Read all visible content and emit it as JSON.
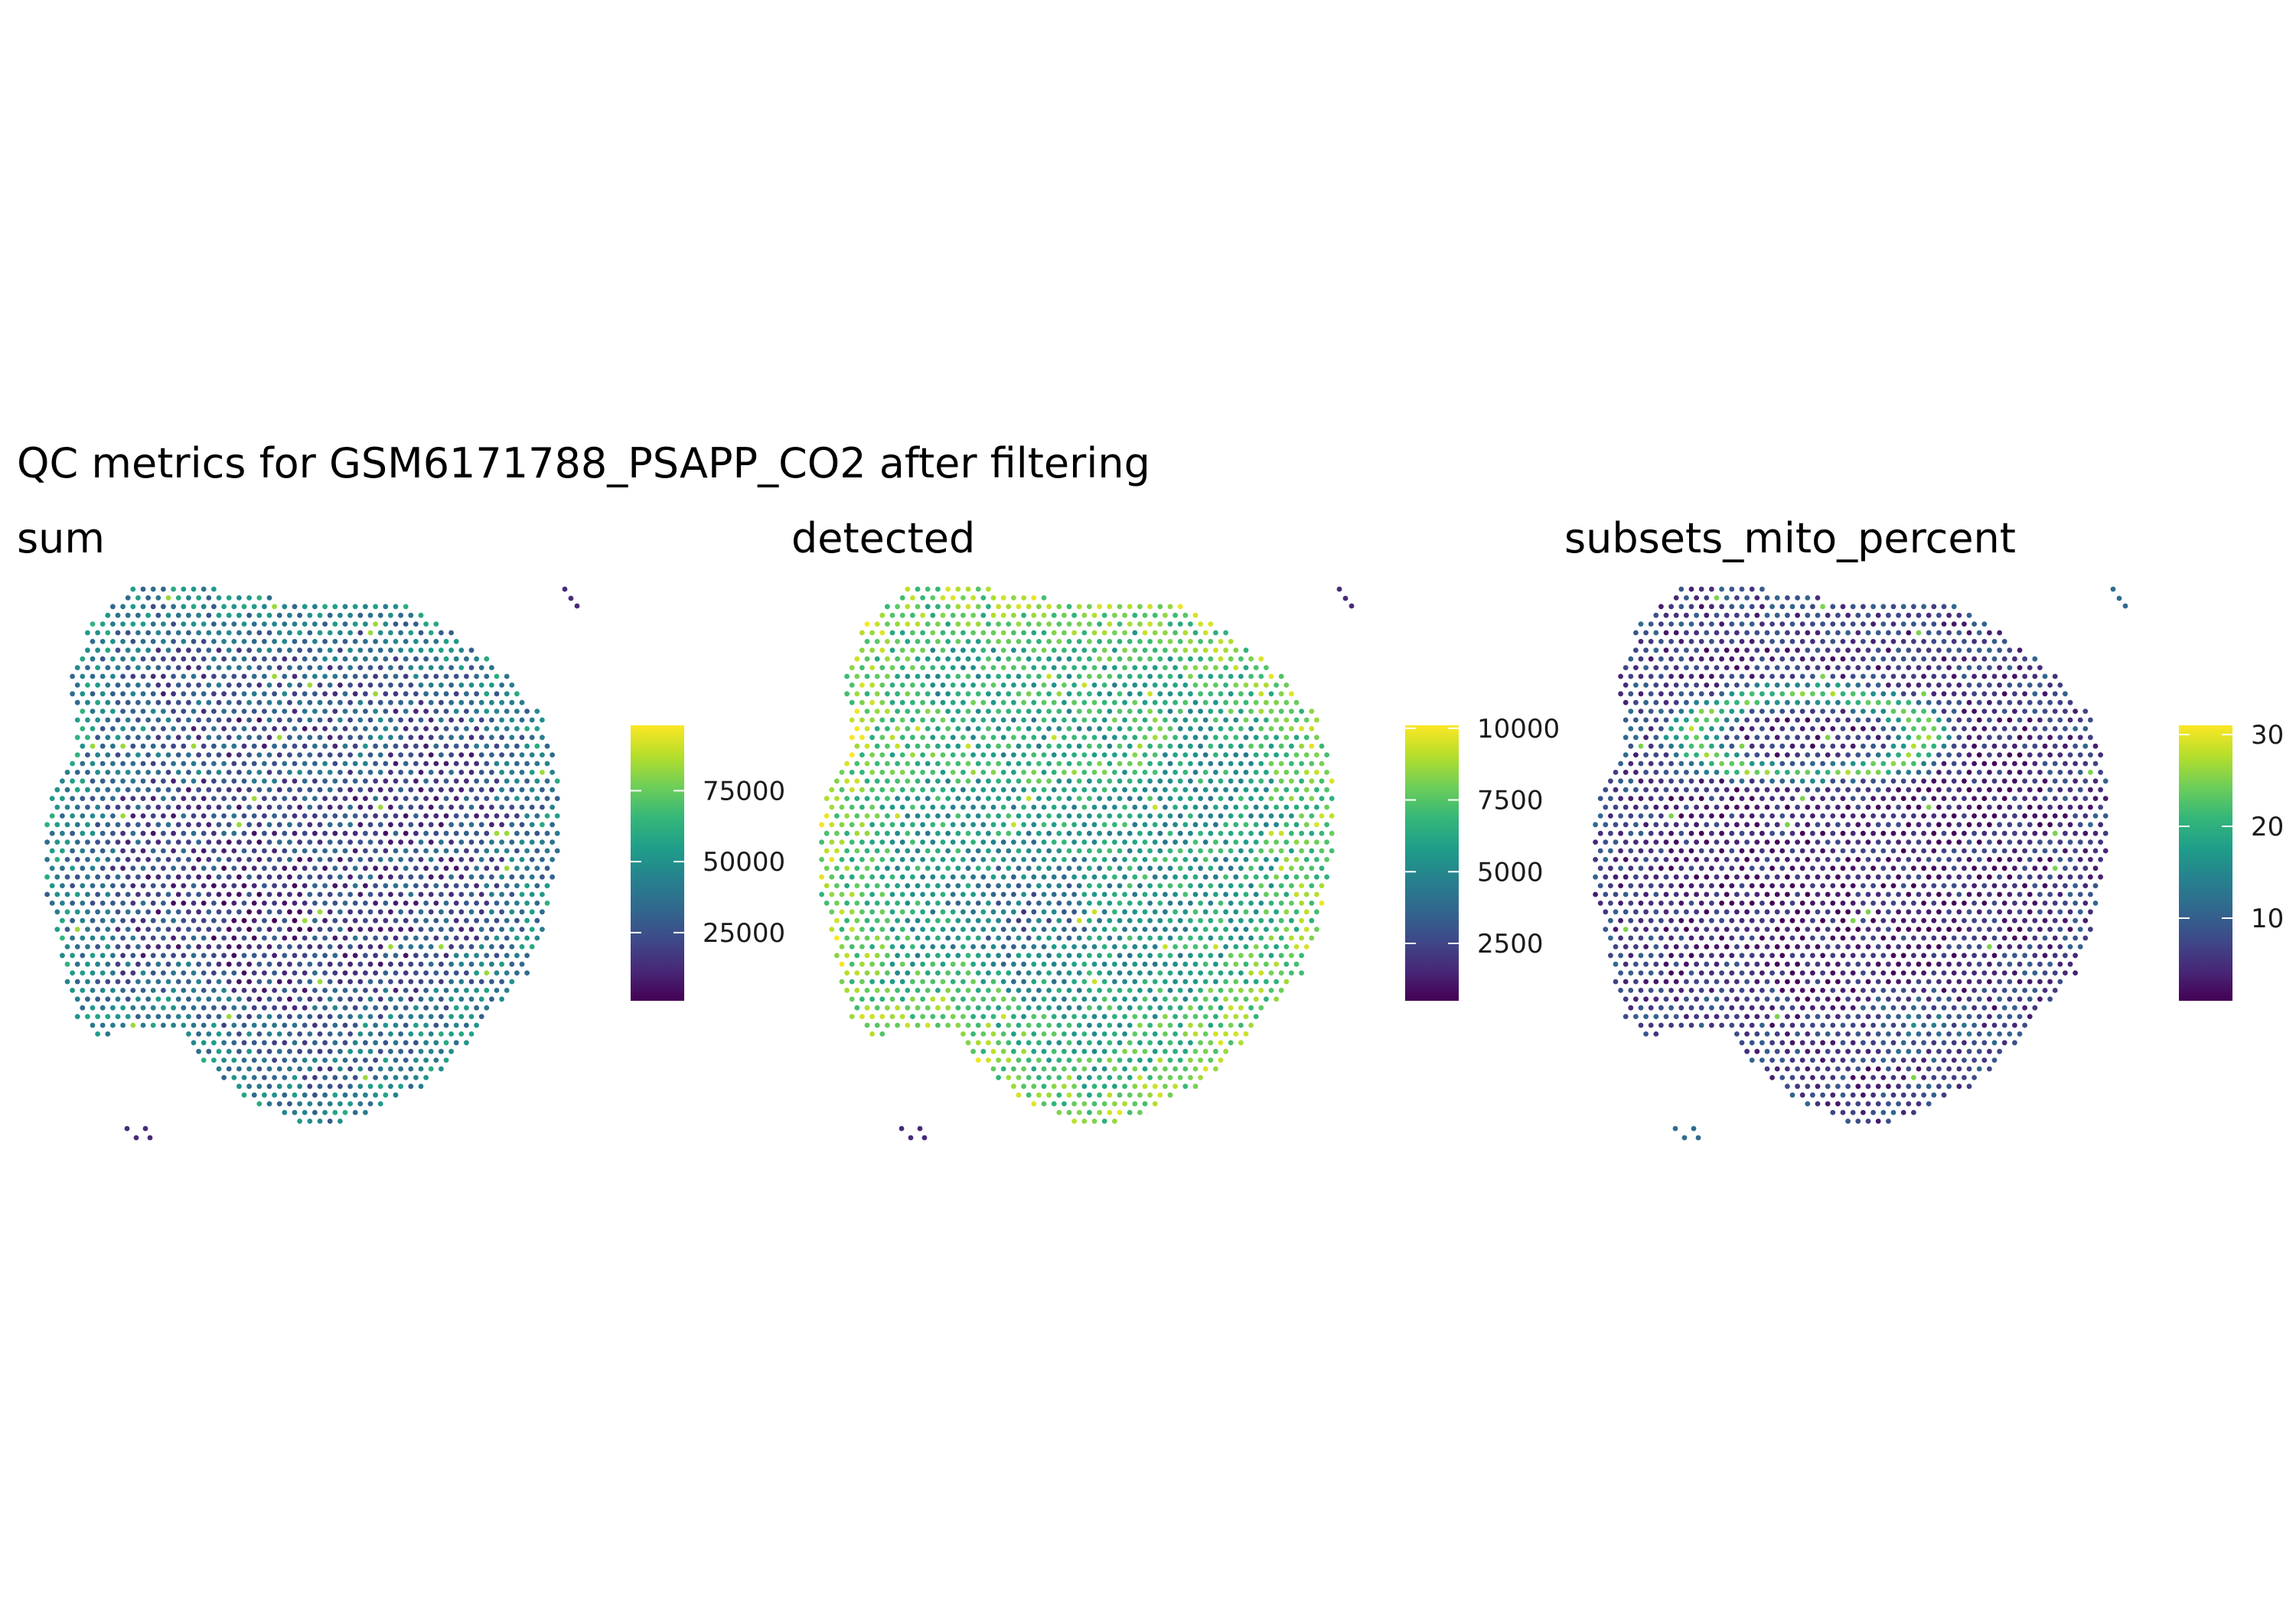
{
  "colors": {
    "scale": [
      "#440154",
      "#482878",
      "#3e4a89",
      "#31688e",
      "#26828e",
      "#1f9e89",
      "#35b779",
      "#6ece58",
      "#b5de2b",
      "#fde725"
    ],
    "background": "#ffffff",
    "tick_mark": "#ffffff"
  },
  "chart_data": {
    "type": "spatial-scatter",
    "title": "QC metrics for GSM6171788_PSAPP_CO2 after filtering",
    "colormap": "viridis",
    "grid": false,
    "legend_position": "right of each panel",
    "panels": [
      {
        "name": "sum",
        "color_range": [
          1000,
          98000
        ],
        "ticks": [
          25000,
          50000,
          75000
        ],
        "tick_labels": [
          "25000",
          "50000",
          "75000"
        ]
      },
      {
        "name": "detected",
        "color_range": [
          500,
          10100
        ],
        "ticks": [
          2500,
          5000,
          7500,
          10000
        ],
        "tick_labels": [
          "2500",
          "5000",
          "7500",
          "10000"
        ]
      },
      {
        "name": "subsets_mito_percent",
        "color_range": [
          1,
          31
        ],
        "ticks": [
          10,
          20,
          30
        ],
        "tick_labels": [
          "10",
          "20",
          "30"
        ]
      }
    ]
  }
}
